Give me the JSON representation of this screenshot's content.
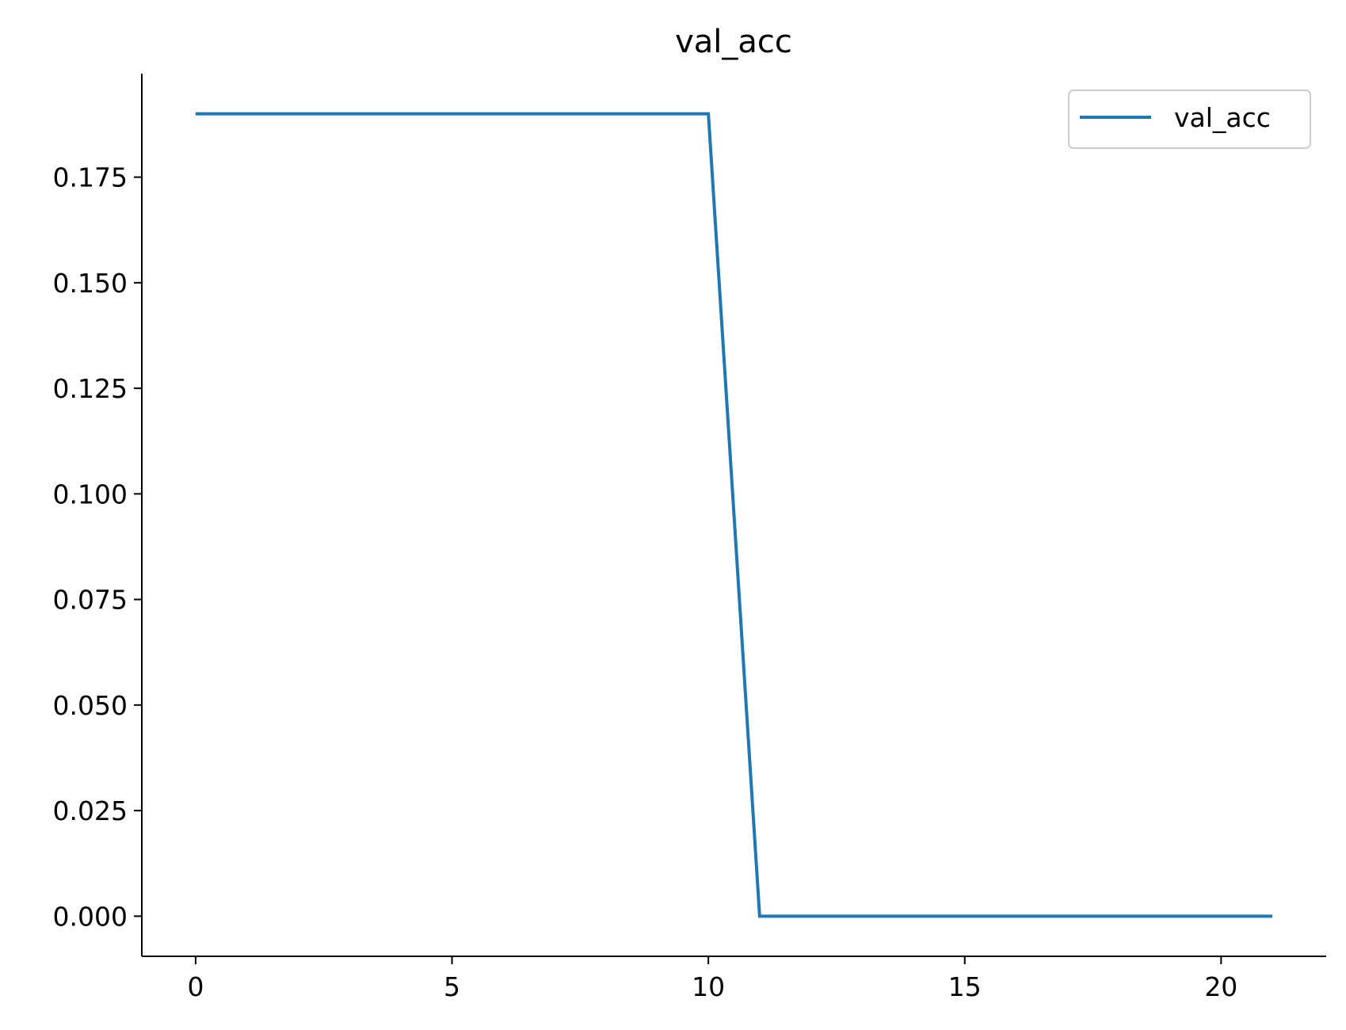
{
  "chart_data": {
    "type": "line",
    "title": "val_acc",
    "xlabel": "",
    "ylabel": "",
    "xlim": [
      -1.05,
      22.05
    ],
    "ylim": [
      -0.0095,
      0.1995
    ],
    "x_ticks": [
      0,
      5,
      10,
      15,
      20
    ],
    "y_ticks": [
      0.0,
      0.025,
      0.05,
      0.075,
      0.1,
      0.125,
      0.15,
      0.175
    ],
    "x_tick_labels": [
      "0",
      "5",
      "10",
      "15",
      "20"
    ],
    "y_tick_labels": [
      "0.000",
      "0.025",
      "0.050",
      "0.075",
      "0.100",
      "0.125",
      "0.150",
      "0.175"
    ],
    "grid": false,
    "legend_position": "top-right",
    "series": [
      {
        "name": "val_acc",
        "color": "#1f77b4",
        "x": [
          0,
          1,
          2,
          3,
          4,
          5,
          6,
          7,
          8,
          9,
          10,
          11,
          12,
          13,
          14,
          15,
          16,
          17,
          18,
          19,
          20,
          21
        ],
        "values": [
          0.19,
          0.19,
          0.19,
          0.19,
          0.19,
          0.19,
          0.19,
          0.19,
          0.19,
          0.19,
          0.19,
          0.0,
          0.0,
          0.0,
          0.0,
          0.0,
          0.0,
          0.0,
          0.0,
          0.0,
          0.0,
          0.0
        ]
      }
    ]
  }
}
